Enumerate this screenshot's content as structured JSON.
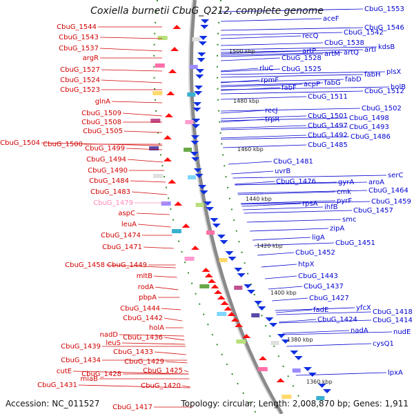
{
  "title": "Coxiella burnetii CbuG_Q212, complete genome",
  "footer": {
    "accession": "Accession: NC_011527",
    "summary": "Topology: circular; Length: 2,008,870 bp; Genes: 1,911"
  },
  "colors": {
    "left_label": "#d10000",
    "right_label": "#0000d0",
    "faded_label": "#ff88bb"
  },
  "scale_marks": [
    "1500 kbp",
    "1480 kbp",
    "1460 kbp",
    "1440 kbp",
    "1420 kbp",
    "1400 kbp",
    "1380 kbp",
    "1360 kbp"
  ],
  "left_genes": [
    "CbuG_1544",
    "CbuG_1543",
    "CbuG_1537",
    "argR",
    "CbuG_1527",
    "CbuG_1524",
    "CbuG_1523",
    "glnA",
    "CbuG_1509",
    "CbuG_1508",
    "CbuG_1505",
    "CbuG_1504",
    "CbuG_1500",
    "CbuG_1499",
    "CbuG_1494",
    "CbuG_1490",
    "CbuG_1484",
    "CbuG_1483",
    "CbuG_1479",
    "aspC",
    "leuA",
    "CbuG_1474",
    "CbuG_1471",
    "CbuG_1458",
    "CbuG_1449",
    "mltB",
    "rodA",
    "pbpA",
    "CbuG_1444",
    "CbuG_1442",
    "holA",
    "nadD",
    "CbuG_1436",
    "CbuG_1439",
    "leuS",
    "CbuG_1433",
    "CbuG_1434",
    "CbuG_1429",
    "cutE",
    "CbuG_1428",
    "CbuG_1425",
    "CbuG_1431",
    "miaB",
    "CbuG_1420",
    "CbuG_1417"
  ],
  "right_genes": [
    "CbuG_1553",
    "aceF",
    "CbuG_1546",
    "CbuG_1542",
    "recQ",
    "CbuG_1538",
    "kdsB",
    "artI",
    "artQ",
    "artM",
    "artP",
    "CbuG_1528",
    "rluC",
    "CbuG_1525",
    "plsX",
    "fabH",
    "fabD",
    "fabG",
    "acpP",
    "rpmF",
    "fabF",
    "holB",
    "CbuG_1512",
    "CbuG_1511",
    "CbuG_1502",
    "recJ",
    "CbuG_1501",
    "trpR",
    "CbuG_1498",
    "CbuG_1497",
    "CbuG_1493",
    "CbuG_1492",
    "CbuG_1486",
    "CbuG_1485",
    "CbuG_1481",
    "uvrB",
    "CbuG_1476",
    "serC",
    "aroA",
    "gyrA",
    "CbuG_1464",
    "cmk",
    "rpsA",
    "pyrF",
    "CbuG_1459",
    "ihfB",
    "CbuG_1457",
    "smc",
    "zipA",
    "ligA",
    "CbuG_1451",
    "CbuG_1452",
    "htpX",
    "CbuG_1443",
    "CbuG_1437",
    "CbuG_1427",
    "yfcX",
    "fadE",
    "CbuG_1418",
    "CbuG_1424",
    "CbuG_1414",
    "nadA",
    "nudE",
    "cysQ1",
    "lpxA"
  ]
}
